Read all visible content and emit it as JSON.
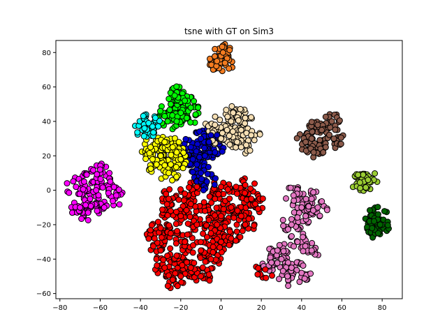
{
  "chart_data": {
    "type": "scatter",
    "title": "tsne with GT on Sim3",
    "xlabel": "",
    "ylabel": "",
    "xlim": [
      -82,
      90
    ],
    "ylim": [
      -63,
      87
    ],
    "xticks": [
      -80,
      -60,
      -40,
      -20,
      0,
      20,
      40,
      60,
      80
    ],
    "yticks": [
      -60,
      -40,
      -20,
      0,
      20,
      40,
      60,
      80
    ],
    "grid": false,
    "legend": "none",
    "marker_edge_color": "#000000",
    "series": [
      {
        "color": "#ff0000",
        "points": [
          [
            -20,
            -50
          ],
          [
            -28,
            -45
          ],
          [
            -30,
            -35
          ],
          [
            -25,
            -25
          ],
          [
            -22,
            -38
          ],
          [
            -15,
            -45
          ],
          [
            -18,
            -30
          ],
          [
            -12,
            -20
          ],
          [
            -10,
            -35
          ],
          [
            -5,
            -25
          ],
          [
            -8,
            -12
          ],
          [
            0,
            -15
          ],
          [
            -3,
            -5
          ],
          [
            5,
            -10
          ],
          [
            8,
            -2
          ],
          [
            10,
            -15
          ],
          [
            15,
            -5
          ],
          [
            12,
            -20
          ],
          [
            -15,
            -8
          ],
          [
            -20,
            -15
          ],
          [
            -25,
            -12
          ],
          [
            -5,
            -40
          ],
          [
            0,
            -30
          ],
          [
            5,
            -28
          ],
          [
            -30,
            -22
          ],
          [
            -26,
            -5
          ],
          [
            -18,
            -2
          ],
          [
            -12,
            2
          ],
          [
            0,
            2
          ],
          [
            12,
            3
          ],
          [
            17,
            -8
          ],
          [
            -2,
            -20
          ],
          [
            -10,
            -50
          ],
          [
            -24,
            -52
          ],
          [
            -33,
            -28
          ],
          [
            22,
            -46
          ],
          [
            -4,
            -36
          ]
        ]
      },
      {
        "color": "#0000cd",
        "points": [
          [
            -10,
            30
          ],
          [
            -5,
            32
          ],
          [
            -8,
            20
          ],
          [
            -12,
            15
          ],
          [
            -15,
            25
          ],
          [
            -3,
            22
          ],
          [
            -10,
            10
          ],
          [
            -7,
            5
          ],
          [
            -14,
            18
          ],
          [
            -6,
            28
          ],
          [
            -2,
            32
          ]
        ]
      },
      {
        "color": "#ffff00",
        "points": [
          [
            -35,
            25
          ],
          [
            -30,
            20
          ],
          [
            -25,
            15
          ],
          [
            -28,
            28
          ],
          [
            -22,
            22
          ],
          [
            -32,
            15
          ],
          [
            -20,
            18
          ],
          [
            -26,
            10
          ],
          [
            -34,
            18
          ],
          [
            -24,
            25
          ]
        ]
      },
      {
        "color": "#00ff00",
        "points": [
          [
            -25,
            50
          ],
          [
            -20,
            45
          ],
          [
            -18,
            52
          ],
          [
            -28,
            43
          ],
          [
            -22,
            40
          ],
          [
            -15,
            48
          ],
          [
            -23,
            55
          ],
          [
            -17,
            42
          ]
        ]
      },
      {
        "color": "#00ffff",
        "points": [
          [
            -38,
            36
          ],
          [
            -36,
            39
          ],
          [
            -34,
            37
          ]
        ]
      },
      {
        "color": "#f5deb3",
        "points": [
          [
            5,
            40
          ],
          [
            10,
            35
          ],
          [
            0,
            30
          ],
          [
            8,
            28
          ],
          [
            12,
            42
          ],
          [
            3,
            35
          ],
          [
            15,
            32
          ],
          [
            6,
            45
          ],
          [
            -3,
            38
          ],
          [
            10,
            25
          ]
        ]
      },
      {
        "color": "#f47c20",
        "points": [
          [
            0,
            78
          ],
          [
            2,
            74
          ],
          [
            -2,
            75
          ],
          [
            1,
            80
          ]
        ]
      },
      {
        "color": "#8b5a4a",
        "points": [
          [
            50,
            35
          ],
          [
            45,
            30
          ],
          [
            55,
            40
          ],
          [
            52,
            25
          ],
          [
            42,
            28
          ],
          [
            48,
            38
          ],
          [
            56,
            30
          ],
          [
            46,
            22
          ]
        ]
      },
      {
        "color": "#ff00ff",
        "points": [
          [
            -68,
            5
          ],
          [
            -62,
            0
          ],
          [
            -58,
            -10
          ],
          [
            -65,
            -5
          ],
          [
            -70,
            -10
          ],
          [
            -55,
            5
          ],
          [
            -60,
            12
          ],
          [
            -66,
            -13
          ],
          [
            -52,
            -3
          ],
          [
            -72,
            2
          ]
        ]
      },
      {
        "color": "#e377c2",
        "points": [
          [
            40,
            -10
          ],
          [
            35,
            -20
          ],
          [
            45,
            -5
          ],
          [
            38,
            -30
          ],
          [
            42,
            -15
          ],
          [
            30,
            -40
          ],
          [
            35,
            -45
          ],
          [
            28,
            -35
          ],
          [
            40,
            -48
          ],
          [
            33,
            -50
          ],
          [
            25,
            -42
          ],
          [
            45,
            -35
          ],
          [
            48,
            -10
          ],
          [
            36,
            -3
          ]
        ]
      },
      {
        "color": "#006400",
        "points": [
          [
            76,
            -18
          ],
          [
            78,
            -14
          ],
          [
            75,
            -22
          ],
          [
            79,
            -20
          ]
        ]
      },
      {
        "color": "#9acd32",
        "points": [
          [
            71,
            5
          ],
          [
            73,
            6
          ],
          [
            69,
            4.5
          ]
        ]
      }
    ]
  }
}
